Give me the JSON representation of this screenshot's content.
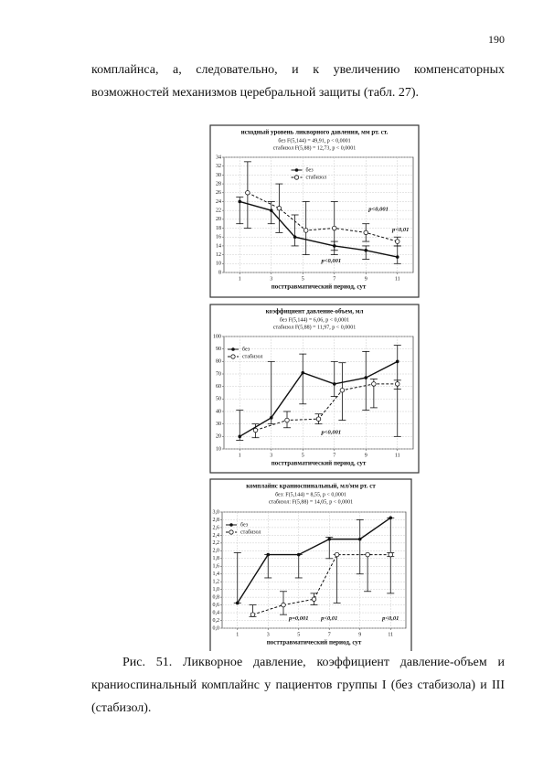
{
  "page_number": "190",
  "paragraph": "комплайнса, а, следовательно, и к увеличению компенсаторных возможностей механизмов церебральной защиты (табл. 27).",
  "chart_data": [
    {
      "type": "line",
      "title": "исходный уровень ликворного давления, мм рт. ст.",
      "subtitle": [
        "без   F(5,144) = 49,91, p < 0,0001",
        "стабизол   F(5,88) = 12,73, p < 0,0001"
      ],
      "x_label": "посттравматический период, сут",
      "xlim": [
        0,
        12
      ],
      "xticks": [
        1,
        3,
        5,
        7,
        9,
        11
      ],
      "ylim": [
        8,
        34
      ],
      "yticks": [
        8,
        10,
        12,
        14,
        16,
        18,
        20,
        22,
        24,
        26,
        28,
        30,
        32,
        34
      ],
      "grid": true,
      "legend": "upper center",
      "series": [
        {
          "name": "без",
          "color": "#111111",
          "line_style": "solid",
          "marker": "filled",
          "x": [
            1,
            3,
            4.5,
            7,
            9,
            11
          ],
          "values": [
            24,
            22,
            16,
            14,
            13,
            11.5
          ],
          "lower": [
            19,
            19,
            14,
            13,
            11,
            10
          ],
          "upper": [
            25,
            24,
            21,
            15,
            14,
            14
          ]
        },
        {
          "name": "стабизол",
          "color": "#111111",
          "line_style": "dashed",
          "marker": "open",
          "x": [
            1.5,
            3.5,
            5.2,
            7,
            9,
            11
          ],
          "values": [
            26,
            22.5,
            17.5,
            18,
            17,
            15
          ],
          "lower": [
            18,
            17,
            12,
            12,
            15,
            14
          ],
          "upper": [
            33,
            28,
            24,
            24,
            19,
            16
          ]
        }
      ],
      "annotations": [
        "p<0,001",
        "p<0,001",
        "p<0,01"
      ]
    },
    {
      "type": "line",
      "title": "коэффициент давление-объем, мл",
      "subtitle": [
        "без   F(5,144) = 6,06, p < 0,0001",
        "стабизол   F(5,88) = 11,97, p < 0,0001"
      ],
      "x_label": "посттравматический период, сут",
      "xlim": [
        0,
        12
      ],
      "xticks": [
        1,
        3,
        5,
        7,
        9,
        11
      ],
      "ylim": [
        10,
        100
      ],
      "yticks": [
        10,
        20,
        30,
        40,
        50,
        60,
        70,
        80,
        90,
        100
      ],
      "grid": true,
      "legend": "upper left",
      "series": [
        {
          "name": "без",
          "color": "#111111",
          "line_style": "solid",
          "marker": "filled",
          "x": [
            1,
            3,
            5,
            7,
            9,
            11
          ],
          "values": [
            20,
            35,
            71,
            62,
            67,
            80
          ],
          "lower": [
            17,
            30,
            46,
            52,
            41,
            20
          ],
          "upper": [
            41,
            80,
            86,
            80,
            88,
            93
          ]
        },
        {
          "name": "стабизол",
          "color": "#111111",
          "line_style": "dashed",
          "marker": "open",
          "x": [
            2,
            4,
            6,
            7.5,
            9.5,
            11
          ],
          "values": [
            25,
            33,
            34,
            57,
            62,
            62
          ],
          "lower": [
            19,
            27,
            30,
            33,
            43,
            58
          ],
          "upper": [
            30,
            40,
            38,
            79,
            66,
            65
          ]
        }
      ],
      "annotations": [
        "p<0,001"
      ]
    },
    {
      "type": "line",
      "title": "комплайнс краниоспинальный, мл/мм рт. ст",
      "subtitle": [
        "без:   F(5,144) = 8,55, p < 0,0001",
        "стабизол:   F(5,88) = 14,05, p < 0,0001"
      ],
      "x_label": "посттравматический период, сут",
      "xlim": [
        0,
        12
      ],
      "xticks": [
        1,
        3,
        5,
        7,
        9,
        11
      ],
      "ylim": [
        0,
        3
      ],
      "yticks": [
        {
          "value": 0,
          "label": "0,0"
        },
        {
          "value": 0.2,
          "label": "0,2"
        },
        {
          "value": 0.4,
          "label": "0,4"
        },
        {
          "value": 0.6,
          "label": "0,6"
        },
        {
          "value": 0.8,
          "label": "0,8"
        },
        {
          "value": 1,
          "label": "1,0"
        },
        {
          "value": 1.2,
          "label": "1,2"
        },
        {
          "value": 1.4,
          "label": "1,4"
        },
        {
          "value": 1.6,
          "label": "1,6"
        },
        {
          "value": 1.8,
          "label": "1,8"
        },
        {
          "value": 2,
          "label": "2,0"
        },
        {
          "value": 2.2,
          "label": "2,2"
        },
        {
          "value": 2.4,
          "label": "2,4"
        },
        {
          "value": 2.6,
          "label": "2,6"
        },
        {
          "value": 2.8,
          "label": "2,8"
        },
        {
          "value": 3,
          "label": "3,0"
        }
      ],
      "grid": true,
      "legend": "upper left",
      "series": [
        {
          "name": "без",
          "color": "#111111",
          "line_style": "solid",
          "marker": "filled",
          "x": [
            1,
            3,
            5,
            7,
            9,
            11
          ],
          "values": [
            0.65,
            1.9,
            1.9,
            2.3,
            2.3,
            2.85
          ],
          "lower": [
            0.65,
            1.3,
            1.3,
            1.8,
            1.4,
            0.9
          ],
          "upper": [
            1.95,
            1.9,
            1.9,
            2.35,
            2.8,
            2.85
          ]
        },
        {
          "name": "стабизол",
          "color": "#111111",
          "line_style": "dashed",
          "marker": "open",
          "x": [
            2,
            4,
            6,
            7.5,
            9.5,
            11
          ],
          "values": [
            0.35,
            0.6,
            0.75,
            1.9,
            1.9,
            1.9
          ],
          "lower": [
            0.3,
            0.35,
            0.6,
            0.65,
            0.95,
            1.85
          ],
          "upper": [
            0.6,
            0.95,
            0.9,
            1.9,
            1.9,
            1.95
          ]
        }
      ],
      "annotations": [
        "p=0,001",
        "p<0,01",
        "p<0,01"
      ]
    }
  ],
  "caption": "Рис. 51. Ликворное давление, коэффициент давление-объем и краниоспинальный комплайнс у пациентов группы I (без стабизола) и III (стабизол)."
}
